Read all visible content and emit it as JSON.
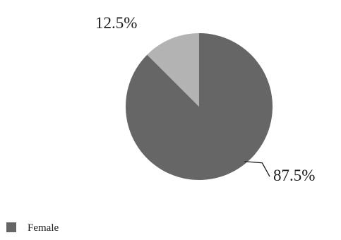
{
  "chart_data": {
    "type": "pie",
    "title": "",
    "slices": [
      {
        "label": "Female",
        "value": 87.5,
        "value_label": "87.5%",
        "color": "#666666"
      },
      {
        "label": "",
        "value": 12.5,
        "value_label": "12.5%",
        "color": "#b3b3b3"
      }
    ],
    "start_angle_deg": 0,
    "direction": "clockwise",
    "legend": {
      "position": "bottom-left",
      "entries": [
        {
          "label": "Female",
          "color": "#666666"
        }
      ]
    }
  }
}
